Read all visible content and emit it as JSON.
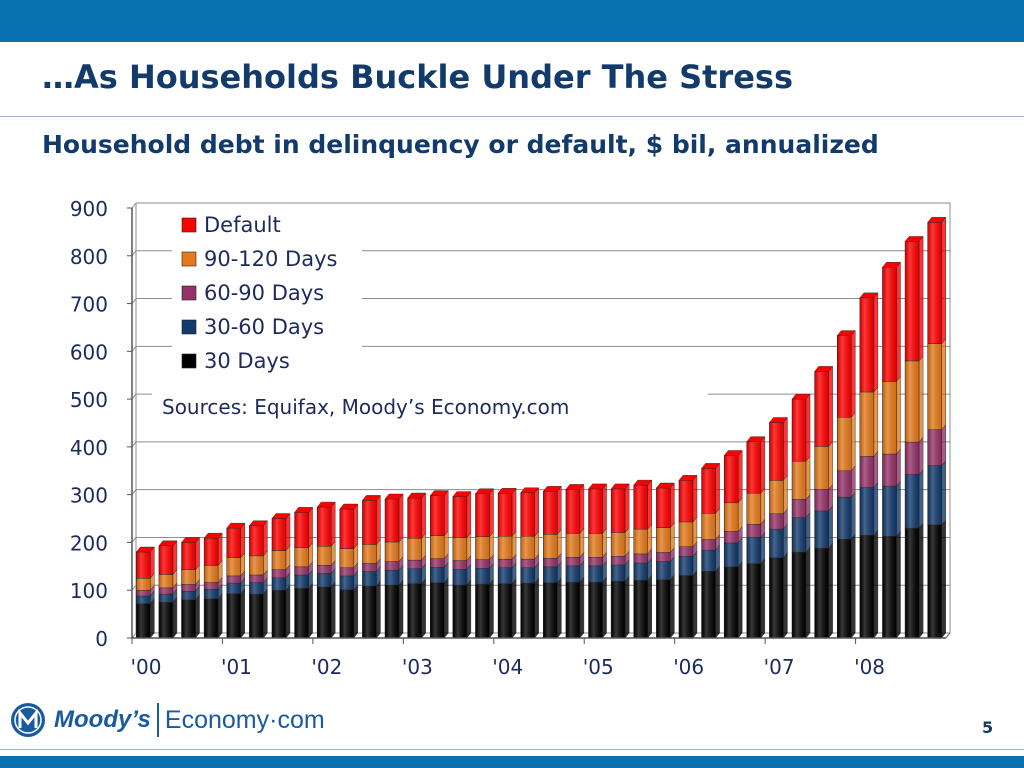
{
  "slide": {
    "title": "…As Households Buckle Under The Stress",
    "page_number": "5"
  },
  "logo": {
    "brand": "Moody’s",
    "sub": "Economy·com"
  },
  "colors": {
    "band": "#0872b1",
    "title": "#123a6b",
    "rule": "#9bb7d4",
    "logo_blue": "#1a5aa0"
  },
  "chart_data": {
    "type": "bar",
    "stacked": true,
    "title": "Household debt in delinquency or default, $ bil, annualized",
    "source": "Sources: Equifax, Moody’s Economy.com",
    "ylim": [
      0,
      900
    ],
    "yticks": [
      0,
      100,
      200,
      300,
      400,
      500,
      600,
      700,
      800,
      900
    ],
    "xtick_labels": [
      "'00",
      "'01",
      "'02",
      "'03",
      "'04",
      "'05",
      "'06",
      "'07",
      "'08"
    ],
    "periods_per_label": 4,
    "grid": true,
    "legend_position": "top-left",
    "series": [
      {
        "name": "30 Days",
        "color": "#000000",
        "values": [
          72,
          75,
          80,
          82,
          93,
          92,
          100,
          104,
          107,
          101,
          109,
          111,
          114,
          116,
          111,
          113,
          114,
          115,
          116,
          117,
          117,
          119,
          121,
          122,
          131,
          140,
          149,
          156,
          168,
          180,
          188,
          207,
          215,
          213,
          230,
          237
        ]
      },
      {
        "name": "30-60 Days",
        "color": "#123a6b",
        "values": [
          16,
          17,
          18,
          20,
          22,
          24,
          26,
          28,
          28,
          29,
          30,
          31,
          31,
          32,
          33,
          33,
          33,
          32,
          33,
          34,
          34,
          34,
          36,
          38,
          40,
          44,
          50,
          55,
          60,
          72,
          78,
          88,
          100,
          105,
          112,
          124
        ]
      },
      {
        "name": "60-90 Days",
        "color": "#943268",
        "values": [
          12,
          13,
          14,
          14,
          15,
          16,
          17,
          17,
          17,
          17,
          17,
          18,
          18,
          18,
          18,
          18,
          18,
          18,
          18,
          18,
          18,
          18,
          19,
          19,
          20,
          22,
          24,
          27,
          32,
          38,
          45,
          55,
          65,
          67,
          68,
          75
        ]
      },
      {
        "name": "90-120 Days",
        "color": "#e47a1c",
        "values": [
          25,
          28,
          31,
          36,
          38,
          40,
          40,
          40,
          40,
          40,
          40,
          41,
          46,
          48,
          48,
          48,
          48,
          48,
          50,
          50,
          50,
          50,
          52,
          52,
          52,
          55,
          60,
          65,
          70,
          80,
          90,
          112,
          135,
          152,
          170,
          180
        ]
      },
      {
        "name": "Default",
        "color": "#ff0000",
        "values": [
          55,
          60,
          57,
          57,
          62,
          63,
          67,
          74,
          82,
          83,
          92,
          90,
          84,
          84,
          86,
          90,
          90,
          91,
          90,
          92,
          93,
          91,
          92,
          83,
          87,
          94,
          99,
          108,
          121,
          130,
          157,
          171,
          197,
          239,
          250,
          254
        ]
      }
    ]
  }
}
